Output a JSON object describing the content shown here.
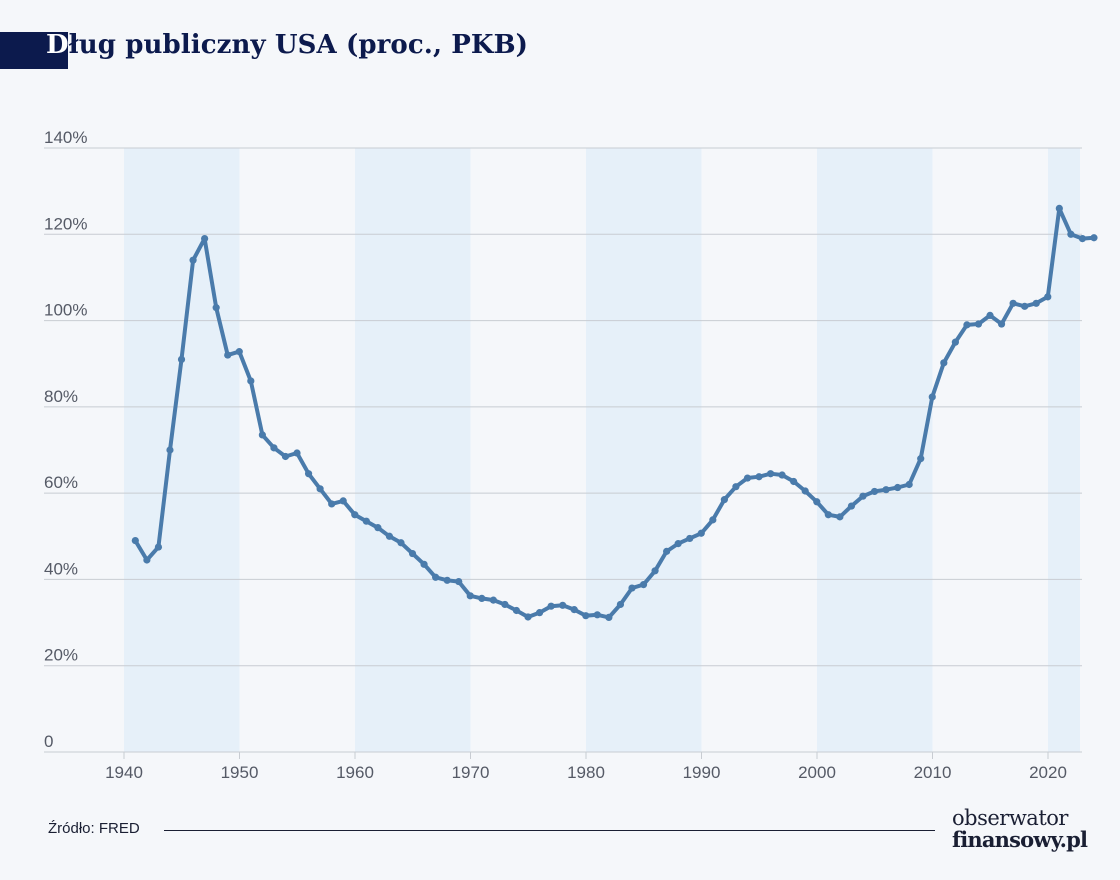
{
  "title": {
    "first_letter": "D",
    "rest": "ług publiczny USA (proc., PKB)"
  },
  "source": "Źródło: FRED",
  "brand": {
    "line1": "obserwator",
    "line2": "finansowy.pl"
  },
  "colors": {
    "line": "#4a7bab",
    "band": "#e6f0f9",
    "grid": "#c8ccd2",
    "axis_text": "#555a66",
    "title": "#0c1a4d"
  },
  "chart_data": {
    "type": "line",
    "title": "Dług publiczny USA (proc., PKB)",
    "xlabel": "",
    "ylabel": "",
    "xlim": [
      1938,
      2023.3
    ],
    "ylim": [
      0,
      140
    ],
    "grid": true,
    "y_ticks": [
      {
        "value": 0,
        "label": "0"
      },
      {
        "value": 20,
        "label": "20%"
      },
      {
        "value": 40,
        "label": "40%"
      },
      {
        "value": 60,
        "label": "60%"
      },
      {
        "value": 80,
        "label": "80%"
      },
      {
        "value": 100,
        "label": "100%"
      },
      {
        "value": 120,
        "label": "120%"
      },
      {
        "value": 140,
        "label": "140%"
      }
    ],
    "x_ticks": [
      {
        "value": 1940,
        "label": "1940"
      },
      {
        "value": 1950,
        "label": "1950"
      },
      {
        "value": 1960,
        "label": "1960"
      },
      {
        "value": 1970,
        "label": "1970"
      },
      {
        "value": 1980,
        "label": "1980"
      },
      {
        "value": 1990,
        "label": "1990"
      },
      {
        "value": 2000,
        "label": "2000"
      },
      {
        "value": 2010,
        "label": "2010"
      },
      {
        "value": 2020,
        "label": "2020"
      }
    ],
    "shaded_decades": [
      [
        1940,
        1950
      ],
      [
        1960,
        1970
      ],
      [
        1980,
        1990
      ],
      [
        2000,
        2010
      ],
      [
        2020,
        2023.3
      ]
    ],
    "series": [
      {
        "points": [
          [
            1941.5,
            49
          ],
          [
            1942.5,
            44.5
          ],
          [
            1943.5,
            47.5
          ],
          [
            1944.5,
            70
          ],
          [
            1945.5,
            91
          ],
          [
            1946.5,
            114
          ],
          [
            1947.5,
            119
          ],
          [
            1948.5,
            103
          ],
          [
            1949.5,
            92
          ],
          [
            1950.5,
            92.8
          ],
          [
            1951.5,
            86
          ],
          [
            1952.5,
            73.5
          ],
          [
            1953.5,
            70.5
          ],
          [
            1954.5,
            68.5
          ],
          [
            1955.5,
            69.3
          ],
          [
            1956.5,
            64.5
          ],
          [
            1957.5,
            61
          ],
          [
            1958.5,
            57.5
          ],
          [
            1959.5,
            58.2
          ],
          [
            1960.5,
            55
          ],
          [
            1961.5,
            53.5
          ],
          [
            1962.5,
            52
          ],
          [
            1963.5,
            50
          ],
          [
            1964.5,
            48.5
          ],
          [
            1965.5,
            46
          ],
          [
            1966.5,
            43.5
          ],
          [
            1967.5,
            40.5
          ],
          [
            1968.5,
            39.8
          ],
          [
            1969.5,
            39.5
          ],
          [
            1970.5,
            36.2
          ],
          [
            1971.5,
            35.6
          ],
          [
            1972.5,
            35.2
          ],
          [
            1973.5,
            34.2
          ],
          [
            1974.5,
            32.8
          ],
          [
            1975.5,
            31.3
          ],
          [
            1976.5,
            32.3
          ],
          [
            1977.5,
            33.8
          ],
          [
            1978.5,
            34
          ],
          [
            1979.5,
            33
          ],
          [
            1980.5,
            31.6
          ],
          [
            1981.5,
            31.8
          ],
          [
            1982.5,
            31.2
          ],
          [
            1983.5,
            34.2
          ],
          [
            1984.5,
            38
          ],
          [
            1985.5,
            38.8
          ],
          [
            1986.5,
            42
          ],
          [
            1987.5,
            46.5
          ],
          [
            1988.5,
            48.3
          ],
          [
            1989.5,
            49.5
          ],
          [
            1990.5,
            50.7
          ],
          [
            1991.5,
            53.8
          ],
          [
            1992.5,
            58.5
          ],
          [
            1993.5,
            61.5
          ],
          [
            1994.5,
            63.5
          ],
          [
            1995.5,
            63.8
          ],
          [
            1996.5,
            64.5
          ],
          [
            1997.5,
            64.2
          ],
          [
            1998.5,
            62.7
          ],
          [
            1999.5,
            60.5
          ],
          [
            2000.5,
            58
          ],
          [
            2001.5,
            55
          ],
          [
            2002.5,
            54.5
          ],
          [
            2003.5,
            57
          ],
          [
            2004.5,
            59.3
          ],
          [
            2005.5,
            60.4
          ],
          [
            2006.5,
            60.8
          ],
          [
            2007.5,
            61.3
          ],
          [
            2008.5,
            62
          ],
          [
            2009.5,
            68
          ],
          [
            2010.5,
            82.3
          ],
          [
            2011.5,
            90.2
          ],
          [
            2012.5,
            95
          ],
          [
            2013.5,
            99
          ],
          [
            2014.5,
            99.2
          ],
          [
            2015.5,
            101.2
          ],
          [
            2016.5,
            99.2
          ],
          [
            2017.5,
            104
          ],
          [
            2018.5,
            103.3
          ],
          [
            2019.5,
            104
          ],
          [
            2020.5,
            105.5
          ],
          [
            2021.5,
            126
          ],
          [
            2022.5,
            120
          ],
          [
            2023.5,
            119
          ],
          [
            2024.5,
            119.2
          ]
        ]
      }
    ]
  }
}
